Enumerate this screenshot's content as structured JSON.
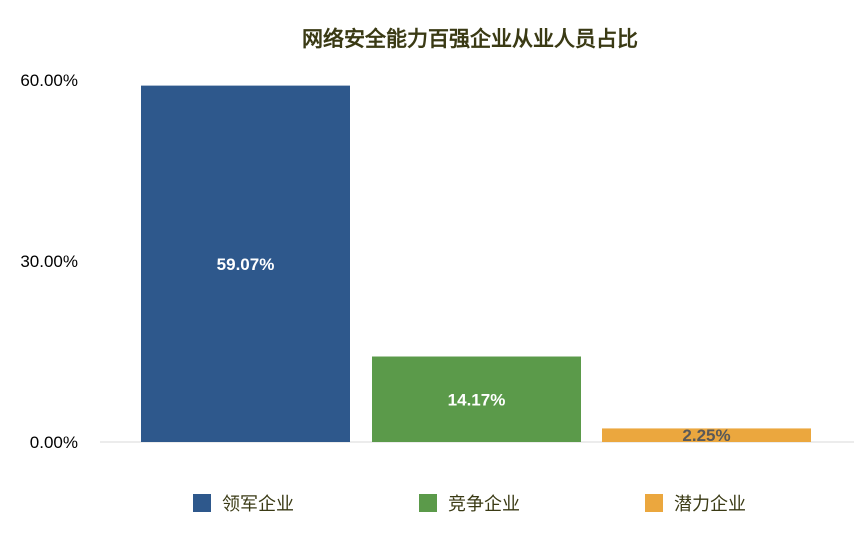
{
  "chart_data": {
    "type": "bar",
    "title": "网络安全能力百强企业从业人员占比",
    "xlabel": "",
    "ylabel": "",
    "categories": [
      "领军企业",
      "竞争企业",
      "潜力企业"
    ],
    "values": [
      59.07,
      14.17,
      2.25
    ],
    "data_labels": [
      "59.07%",
      "14.17%",
      "2.25%"
    ],
    "unit": "%",
    "ylim": [
      0,
      60
    ],
    "yticks": [
      0,
      30,
      60
    ],
    "ytick_labels": [
      "0.00%",
      "30.00%",
      "60.00%"
    ],
    "grid": false,
    "legend_position": "bottom",
    "colors": [
      "#2e588c",
      "#5b9a4a",
      "#eba73e"
    ],
    "data_label_colors": [
      "#ffffff",
      "#ffffff",
      "#595959"
    ],
    "title_color": "#3a3a14",
    "axis_color": "#d9d9d9",
    "tick_color": "#000000",
    "legend_text_color": "#3a3a14"
  }
}
